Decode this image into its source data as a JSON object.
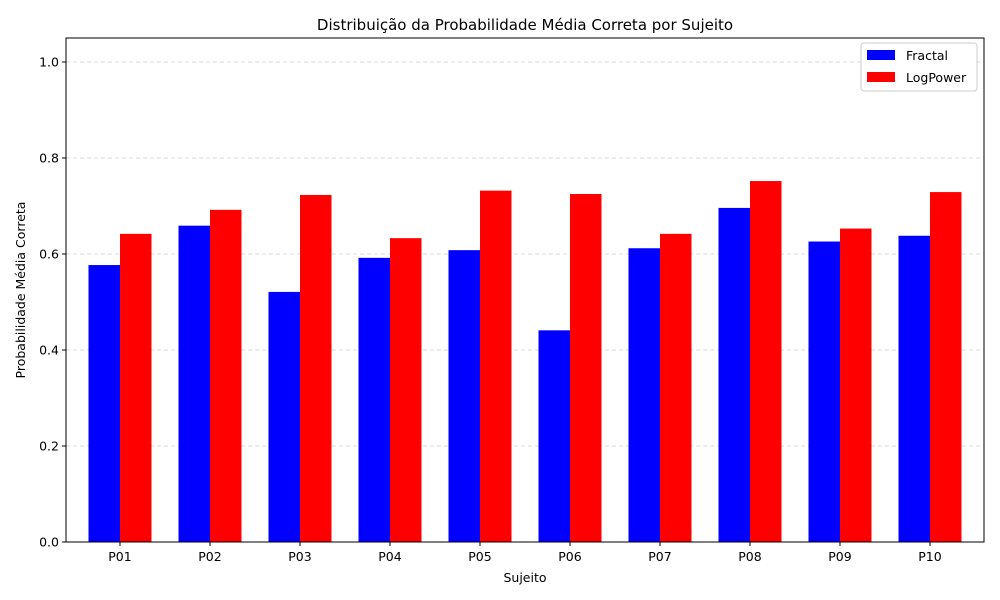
{
  "chart_data": {
    "type": "bar",
    "title": "Distribuição da Probabilidade Média Correta por Sujeito",
    "xlabel": "Sujeito",
    "ylabel": "Probabilidade Média Correta",
    "ylim": [
      0,
      1.05
    ],
    "yticks": [
      "0.0",
      "0.2",
      "0.4",
      "0.6",
      "0.8",
      "1.0"
    ],
    "categories": [
      "P01",
      "P02",
      "P03",
      "P04",
      "P05",
      "P06",
      "P07",
      "P08",
      "P09",
      "P10"
    ],
    "series": [
      {
        "name": "Fractal",
        "color": "#0000ff",
        "values": [
          0.577,
          0.659,
          0.521,
          0.592,
          0.608,
          0.441,
          0.612,
          0.696,
          0.626,
          0.638
        ]
      },
      {
        "name": "LogPower",
        "color": "#ff0000",
        "values": [
          0.642,
          0.692,
          0.723,
          0.633,
          0.732,
          0.725,
          0.642,
          0.752,
          0.653,
          0.729
        ]
      }
    ],
    "grid": "y-dashed",
    "legend": "top-right"
  }
}
